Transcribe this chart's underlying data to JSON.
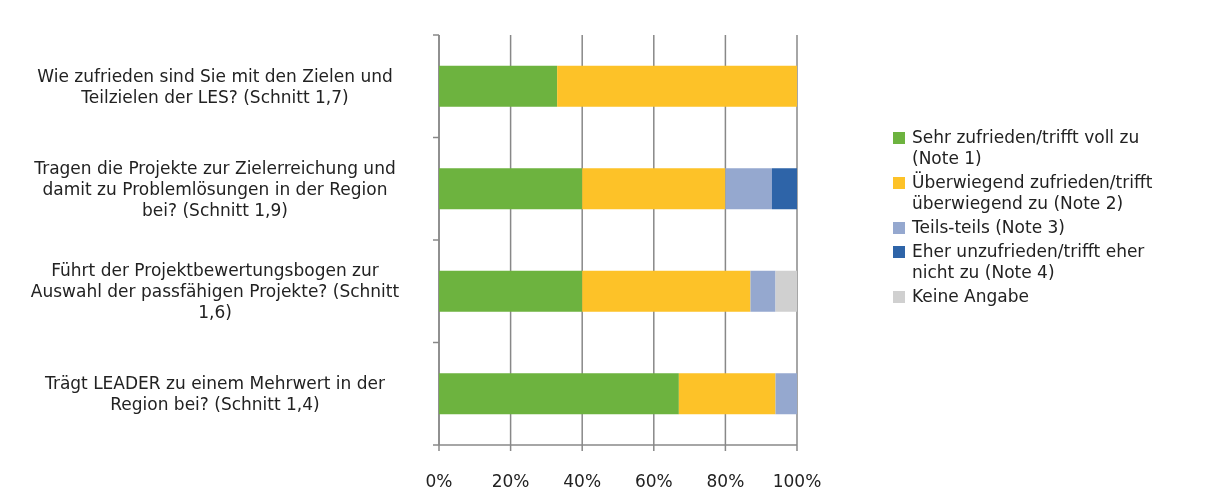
{
  "chart_data": {
    "type": "bar",
    "orientation": "horizontal",
    "stacked": true,
    "categories": [
      "Wie zufrieden sind Sie mit den Zielen und Teilzielen der LES? (Schnitt 1,7)",
      "Tragen die Projekte zur Zielerreichung und damit zu Problemlösungen in der Region bei? (Schnitt 1,9)",
      "Führt der Projektbewertungsbogen zur Auswahl der passfähigen Projekte? (Schnitt 1,6)",
      "Trägt LEADER zu einem Mehrwert in der Region bei? (Schnitt 1,4)"
    ],
    "series": [
      {
        "name": "Sehr zufrieden/trifft voll zu (Note 1)",
        "color": "#6db33f",
        "values": [
          33,
          40,
          40,
          67
        ]
      },
      {
        "name": "Überwiegend zufrieden/trifft überwiegend zu (Note 2)",
        "color": "#fdc228",
        "values": [
          67,
          40,
          47,
          27
        ]
      },
      {
        "name": "Teils-teils (Note 3)",
        "color": "#95a8cf",
        "values": [
          0,
          13,
          7,
          6
        ]
      },
      {
        "name": "Eher unzufrieden/trifft eher nicht zu (Note 4)",
        "color": "#2e64a8",
        "values": [
          0,
          7,
          0,
          0
        ]
      },
      {
        "name": "Keine Angabe",
        "color": "#d0d0d0",
        "values": [
          0,
          0,
          6,
          0
        ]
      }
    ],
    "xlim": [
      0,
      100
    ],
    "xticks": [
      {
        "value": 0,
        "label": "0%"
      },
      {
        "value": 20,
        "label": "20%"
      },
      {
        "value": 40,
        "label": "40%"
      },
      {
        "value": 60,
        "label": "60%"
      },
      {
        "value": 80,
        "label": "80%"
      },
      {
        "value": 100,
        "label": "100%"
      }
    ],
    "grid": "x",
    "legend": "right"
  }
}
